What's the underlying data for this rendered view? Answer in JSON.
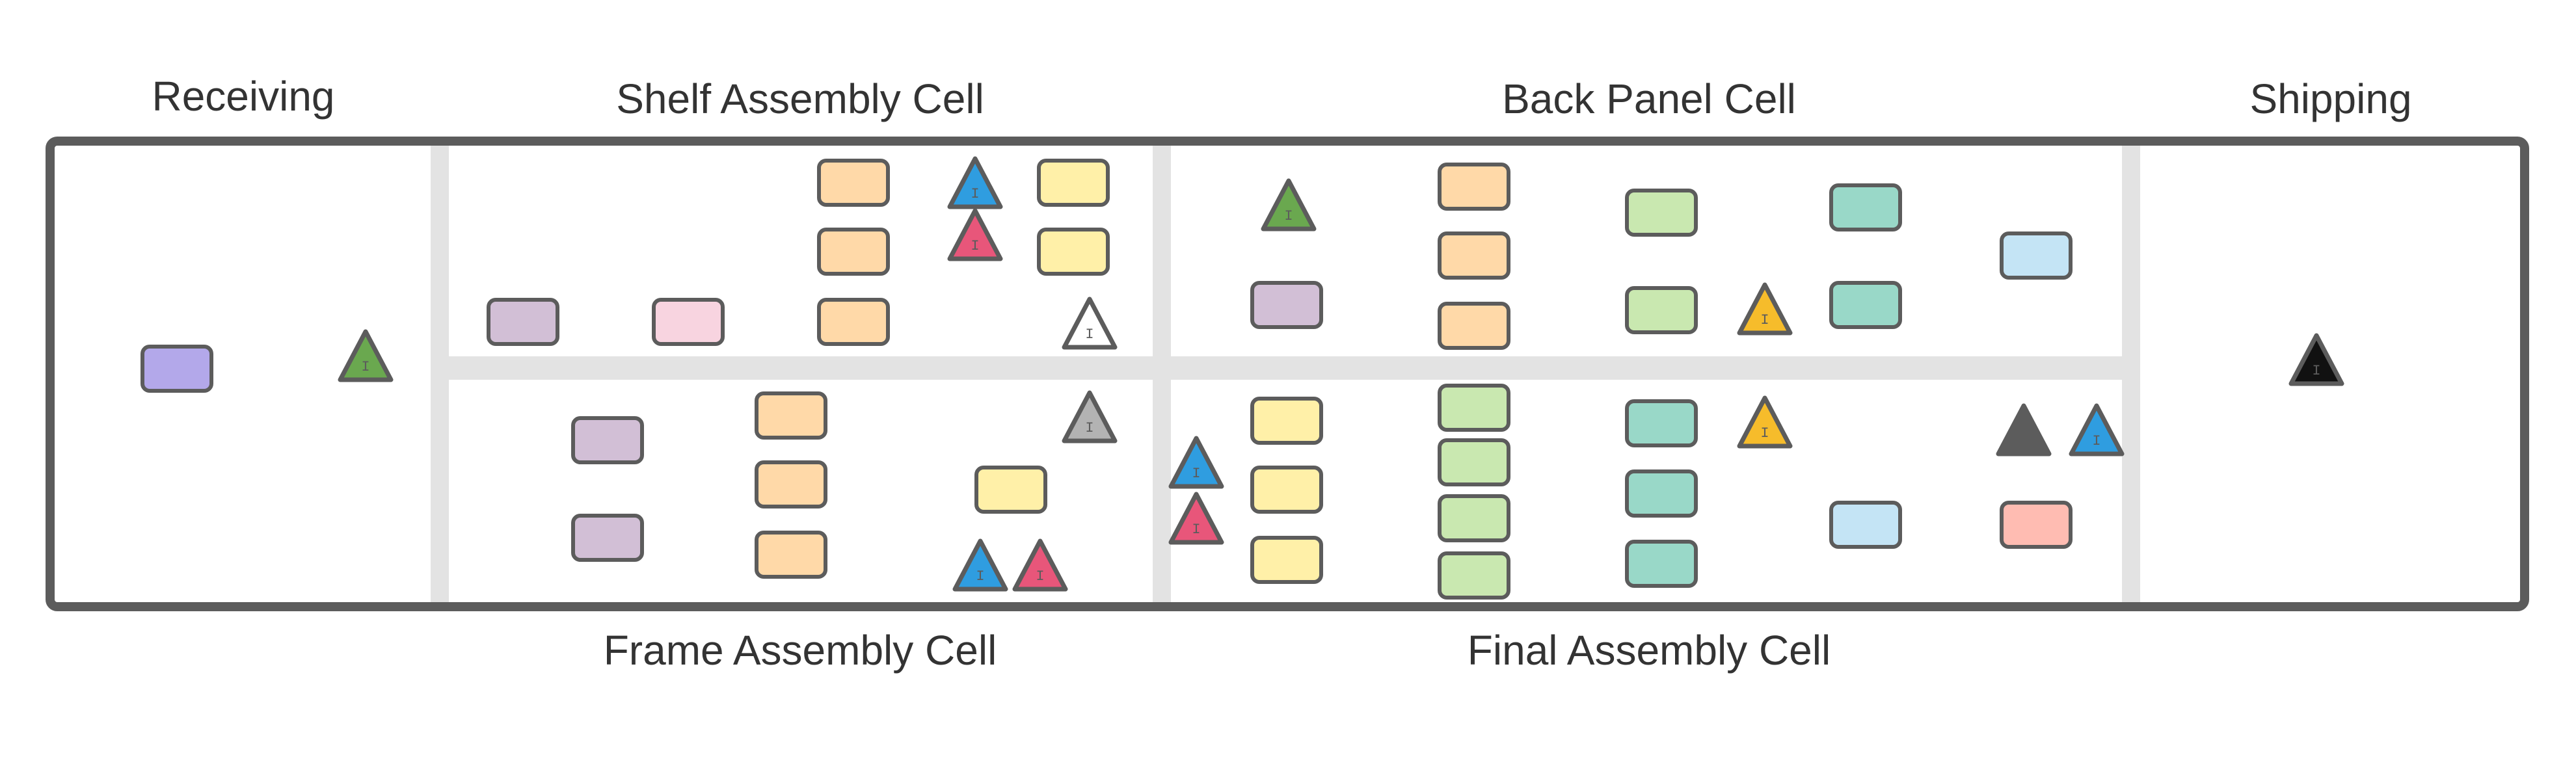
{
  "labels": {
    "receiving": "Receiving",
    "shelf_assembly": "Shelf Assembly Cell",
    "back_panel": "Back Panel Cell",
    "shipping": "Shipping",
    "frame_assembly": "Frame Assembly Cell",
    "final_assembly": "Final Assembly Cell"
  },
  "inventory_marker_text": "I",
  "colors": {
    "outline": "#5c5c5c",
    "aisle": "#e3e3e3",
    "lavender": "#b3a8ea",
    "mauve": "#d2bfd6",
    "pink": "#f8d4e0",
    "peach": "#ffd9a8",
    "yellow": "#fff0a8",
    "light_green": "#c9e8b0",
    "teal": "#99d8c8",
    "light_blue": "#c4e4f5",
    "salmon": "#ffbcb2",
    "green_marker": "#6aa84f",
    "blue_marker": "#2f9de0",
    "pink_marker": "#e8567a",
    "white_marker": "#ffffff",
    "gray_marker": "#b3b3b3",
    "dark_marker": "#5c5c5c",
    "amber_marker": "#f6bc2b",
    "black_marker": "#111111"
  }
}
